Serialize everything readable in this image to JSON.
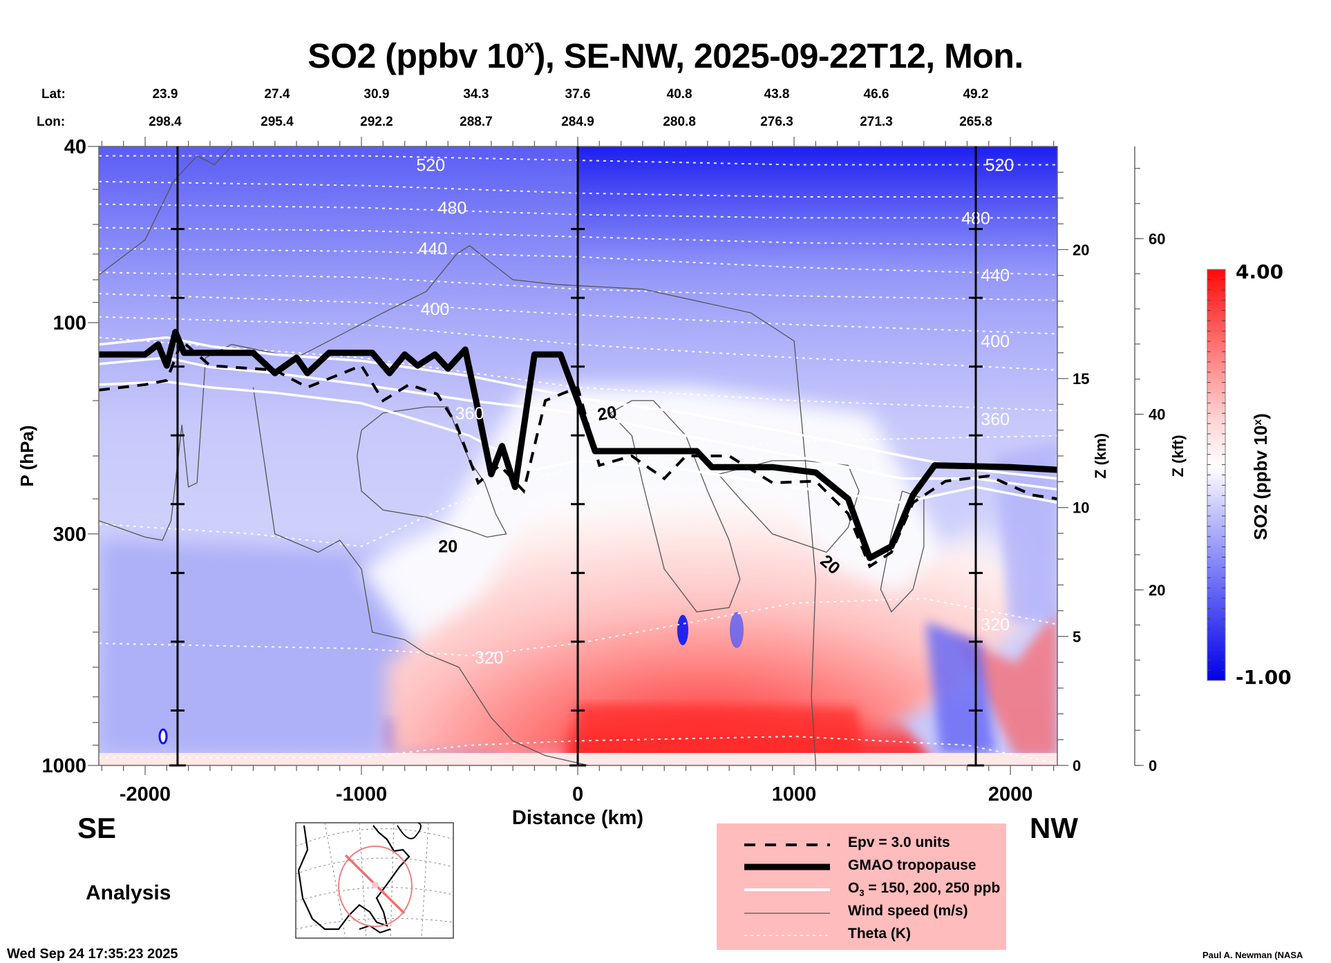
{
  "title": {
    "prefix": "SO2 (ppbv 10",
    "sup": "x",
    "suffix": "), SE-NW, 2025-09-22T12, Mon."
  },
  "coords": {
    "lat_label": "Lat:",
    "lon_label": "Lon:",
    "distance_km": [
      -1850,
      -1390,
      -930,
      -470,
      0,
      470,
      920,
      1380,
      1840
    ],
    "lat": [
      "23.9",
      "27.4",
      "30.9",
      "34.3",
      "37.6",
      "40.8",
      "43.8",
      "46.6",
      "49.2"
    ],
    "lon": [
      "298.4",
      "295.4",
      "292.2",
      "288.7",
      "284.9",
      "280.8",
      "276.3",
      "271.3",
      "265.8"
    ]
  },
  "direction": {
    "left": "SE",
    "right": "NW"
  },
  "mode_label": "Analysis",
  "timestamp": "Wed Sep 24 17:35:23 2025",
  "credit": "Paul A. Newman (NASA",
  "legend": {
    "items": [
      {
        "style": "dashed",
        "label": "Epv = 3.0 units"
      },
      {
        "style": "thick",
        "label": "GMAO tropopause"
      },
      {
        "style": "white",
        "label_prefix": "O",
        "label_sub": "3",
        "label_suffix": " = 150, 200, 250 ppb"
      },
      {
        "style": "thin",
        "label": "Wind speed (m/s)"
      },
      {
        "style": "dotted",
        "label": "Theta (K)"
      }
    ]
  },
  "chart_data": {
    "type": "heatmap",
    "title": "SO2 (ppbv 10^x), SE-NW, 2025-09-22T12, Mon.",
    "xlabel": "Distance (km)",
    "ylabel": "P (hPa)",
    "y2label": "Z (km)",
    "y3label": "Z (kft)",
    "xlim": [
      -2214,
      2217
    ],
    "ylim_hpa": [
      1000,
      40
    ],
    "y_scale": "log",
    "x_ticks": [
      -2000,
      -1000,
      0,
      1000,
      2000
    ],
    "y_ticks_hpa": [
      40,
      100,
      300,
      1000
    ],
    "z_km_ticks": [
      0,
      5,
      10,
      15,
      20
    ],
    "z_kft_ticks": [
      0,
      20,
      40,
      60
    ],
    "colorbar": {
      "label_prefix": "SO2 (ppbv 10",
      "label_sup": "x",
      "label_suffix": ")",
      "min": -1.0,
      "max": 4.0,
      "min_label": "-1.00",
      "max_label": "4.00",
      "low_color": "#0000ee",
      "mid_color": "#ffffff",
      "high_color": "#ff0000"
    },
    "vertical_markers_km": [
      -1850,
      0,
      1840
    ],
    "theta_labels": [
      {
        "value": "520",
        "x": -680,
        "p": 44
      },
      {
        "value": "480",
        "x": -580,
        "p": 55
      },
      {
        "value": "440",
        "x": -670,
        "p": 68
      },
      {
        "value": "400",
        "x": -660,
        "p": 93
      },
      {
        "value": "360",
        "x": -500,
        "p": 160
      },
      {
        "value": "320",
        "x": -410,
        "p": 570
      },
      {
        "value": "520",
        "x": 1950,
        "p": 44
      },
      {
        "value": "480",
        "x": 1840,
        "p": 58
      },
      {
        "value": "440",
        "x": 1930,
        "p": 78
      },
      {
        "value": "400",
        "x": 1930,
        "p": 110
      },
      {
        "value": "360",
        "x": 1930,
        "p": 165
      },
      {
        "value": "320",
        "x": 1930,
        "p": 480
      }
    ],
    "theta_lines_hpa": [
      [
        [
          -2214,
          42
        ],
        [
          -1000,
          42
        ],
        [
          0,
          43
        ],
        [
          1000,
          44
        ],
        [
          2217,
          44
        ]
      ],
      [
        [
          -2214,
          48
        ],
        [
          -1000,
          49
        ],
        [
          0,
          51
        ],
        [
          1000,
          52
        ],
        [
          2217,
          52
        ]
      ],
      [
        [
          -2214,
          54
        ],
        [
          -1000,
          55
        ],
        [
          0,
          57
        ],
        [
          1000,
          58
        ],
        [
          2217,
          58
        ]
      ],
      [
        [
          -2214,
          61
        ],
        [
          -1000,
          62
        ],
        [
          0,
          64
        ],
        [
          1000,
          66
        ],
        [
          2217,
          67
        ]
      ],
      [
        [
          -2214,
          68
        ],
        [
          -1000,
          69
        ],
        [
          0,
          71
        ],
        [
          1000,
          75
        ],
        [
          2217,
          78
        ]
      ],
      [
        [
          -2214,
          77
        ],
        [
          -1000,
          79
        ],
        [
          0,
          84
        ],
        [
          1000,
          87
        ],
        [
          2217,
          89
        ]
      ],
      [
        [
          -2214,
          86
        ],
        [
          -1000,
          90
        ],
        [
          0,
          96
        ],
        [
          1000,
          101
        ],
        [
          2217,
          106
        ]
      ],
      [
        [
          -2214,
          97
        ],
        [
          -1000,
          101
        ],
        [
          0,
          112
        ],
        [
          1000,
          120
        ],
        [
          2217,
          128
        ]
      ],
      [
        [
          -2214,
          108
        ],
        [
          -1000,
          120
        ],
        [
          0,
          140
        ],
        [
          1000,
          150
        ],
        [
          2217,
          158
        ]
      ],
      [
        [
          -2214,
          285
        ],
        [
          -1500,
          300
        ],
        [
          -1000,
          320
        ],
        [
          -600,
          260
        ],
        [
          0,
          210
        ],
        [
          1000,
          185
        ],
        [
          2217,
          180
        ]
      ],
      [
        [
          -2214,
          530
        ],
        [
          -1000,
          545
        ],
        [
          -500,
          565
        ],
        [
          0,
          530
        ],
        [
          1000,
          430
        ],
        [
          1600,
          420
        ],
        [
          2217,
          480
        ]
      ],
      [
        [
          -2214,
          960
        ],
        [
          -1000,
          960
        ],
        [
          -500,
          900
        ],
        [
          0,
          880
        ],
        [
          1000,
          860
        ],
        [
          1800,
          900
        ],
        [
          2217,
          990
        ]
      ]
    ],
    "tropopause_hpa": [
      [
        -2214,
        118
      ],
      [
        -2000,
        118
      ],
      [
        -1940,
        112
      ],
      [
        -1900,
        125
      ],
      [
        -1860,
        105
      ],
      [
        -1820,
        117
      ],
      [
        -1500,
        117
      ],
      [
        -1400,
        130
      ],
      [
        -1300,
        120
      ],
      [
        -1250,
        130
      ],
      [
        -1150,
        117
      ],
      [
        -950,
        117
      ],
      [
        -870,
        130
      ],
      [
        -800,
        118
      ],
      [
        -740,
        125
      ],
      [
        -660,
        118
      ],
      [
        -600,
        127
      ],
      [
        -520,
        115
      ],
      [
        -470,
        150
      ],
      [
        -400,
        220
      ],
      [
        -350,
        190
      ],
      [
        -290,
        235
      ],
      [
        -200,
        118
      ],
      [
        -80,
        118
      ],
      [
        0,
        150
      ],
      [
        80,
        195
      ],
      [
        300,
        195
      ],
      [
        550,
        195
      ],
      [
        620,
        212
      ],
      [
        900,
        212
      ],
      [
        1100,
        218
      ],
      [
        1250,
        250
      ],
      [
        1350,
        340
      ],
      [
        1450,
        320
      ],
      [
        1550,
        245
      ],
      [
        1650,
        210
      ],
      [
        2000,
        212
      ],
      [
        2217,
        215
      ]
    ],
    "epv_hpa": [
      [
        -2214,
        142
      ],
      [
        -2000,
        138
      ],
      [
        -1900,
        135
      ],
      [
        -1830,
        110
      ],
      [
        -1700,
        125
      ],
      [
        -1400,
        128
      ],
      [
        -1250,
        140
      ],
      [
        -1000,
        125
      ],
      [
        -900,
        150
      ],
      [
        -780,
        138
      ],
      [
        -650,
        145
      ],
      [
        -560,
        170
      ],
      [
        -460,
        230
      ],
      [
        -360,
        210
      ],
      [
        -250,
        240
      ],
      [
        -150,
        150
      ],
      [
        0,
        140
      ],
      [
        100,
        210
      ],
      [
        250,
        200
      ],
      [
        400,
        225
      ],
      [
        500,
        200
      ],
      [
        700,
        200
      ],
      [
        900,
        230
      ],
      [
        1100,
        228
      ],
      [
        1250,
        270
      ],
      [
        1350,
        355
      ],
      [
        1450,
        330
      ],
      [
        1550,
        255
      ],
      [
        1700,
        228
      ],
      [
        1900,
        222
      ],
      [
        2100,
        245
      ],
      [
        2217,
        250
      ]
    ],
    "ozone_hpa": [
      [
        [
          -2214,
          112
        ],
        [
          -1900,
          108
        ],
        [
          -1700,
          113
        ],
        [
          -1400,
          118
        ],
        [
          -1000,
          122
        ],
        [
          -500,
          132
        ],
        [
          0,
          148
        ],
        [
          500,
          160
        ],
        [
          1000,
          178
        ],
        [
          1500,
          200
        ],
        [
          1840,
          215
        ],
        [
          2217,
          225
        ]
      ],
      [
        [
          -2214,
          124
        ],
        [
          -1900,
          120
        ],
        [
          -1700,
          126
        ],
        [
          -1400,
          130
        ],
        [
          -1000,
          138
        ],
        [
          -500,
          150
        ],
        [
          0,
          160
        ],
        [
          500,
          180
        ],
        [
          1000,
          200
        ],
        [
          1500,
          225
        ],
        [
          1840,
          225
        ],
        [
          2217,
          238
        ]
      ],
      [
        [
          -2214,
          138
        ],
        [
          -1900,
          136
        ],
        [
          -1700,
          140
        ],
        [
          -1400,
          144
        ],
        [
          -1000,
          152
        ],
        [
          -500,
          180
        ],
        [
          -200,
          215
        ],
        [
          0,
          205
        ],
        [
          500,
          215
        ],
        [
          1000,
          235
        ],
        [
          1500,
          255
        ],
        [
          1840,
          235
        ],
        [
          2217,
          255
        ]
      ]
    ],
    "wind_20ms_contours_hpa": [
      [
        [
          -2214,
          78
        ],
        [
          -2000,
          65
        ],
        [
          -1870,
          48
        ],
        [
          -1760,
          42
        ],
        [
          -1680,
          44
        ],
        [
          -1600,
          40
        ]
      ],
      [
        [
          -2214,
          280
        ],
        [
          -2000,
          305
        ],
        [
          -1920,
          310
        ],
        [
          -1880,
          280
        ],
        [
          -1860,
          230
        ],
        [
          -1830,
          170
        ],
        [
          -1800,
          235
        ],
        [
          -1760,
          230
        ],
        [
          -1720,
          120
        ],
        [
          -1600,
          112
        ],
        [
          -1300,
          120
        ],
        [
          -900,
          95
        ],
        [
          -700,
          85
        ],
        [
          -560,
          70
        ],
        [
          -500,
          67
        ],
        [
          -420,
          72
        ],
        [
          -300,
          80
        ],
        [
          -100,
          82
        ],
        [
          300,
          84
        ],
        [
          800,
          95
        ],
        [
          1000,
          110
        ],
        [
          1050,
          200
        ],
        [
          1100,
          380
        ],
        [
          1080,
          700
        ],
        [
          1100,
          1000
        ]
      ],
      [
        [
          -1500,
          140
        ],
        [
          -1400,
          300
        ],
        [
          -1200,
          330
        ],
        [
          -1100,
          310
        ],
        [
          -1000,
          360
        ],
        [
          -950,
          500
        ],
        [
          -800,
          520
        ],
        [
          -700,
          560
        ],
        [
          -550,
          600
        ],
        [
          -400,
          780
        ],
        [
          -300,
          880
        ],
        [
          -150,
          950
        ],
        [
          50,
          1000
        ]
      ],
      [
        [
          -1000,
          175
        ],
        [
          -900,
          160
        ],
        [
          -700,
          155
        ],
        [
          -600,
          155
        ],
        [
          -550,
          180
        ],
        [
          -500,
          205
        ],
        [
          -430,
          230
        ],
        [
          -380,
          270
        ],
        [
          -330,
          300
        ],
        [
          -420,
          305
        ],
        [
          -500,
          295
        ],
        [
          -600,
          285
        ],
        [
          -700,
          275
        ],
        [
          -800,
          270
        ],
        [
          -900,
          265
        ],
        [
          -1000,
          240
        ],
        [
          -1020,
          200
        ],
        [
          -1000,
          175
        ]
      ],
      [
        [
          150,
          160
        ],
        [
          250,
          180
        ],
        [
          300,
          230
        ],
        [
          400,
          360
        ],
        [
          550,
          450
        ],
        [
          700,
          440
        ],
        [
          750,
          380
        ],
        [
          700,
          310
        ],
        [
          600,
          240
        ],
        [
          500,
          180
        ],
        [
          350,
          150
        ],
        [
          250,
          150
        ],
        [
          150,
          160
        ]
      ],
      [
        [
          650,
          220
        ],
        [
          750,
          250
        ],
        [
          900,
          300
        ],
        [
          1150,
          330
        ],
        [
          1250,
          290
        ],
        [
          1300,
          240
        ],
        [
          1250,
          210
        ],
        [
          1050,
          205
        ],
        [
          900,
          205
        ],
        [
          650,
          220
        ]
      ],
      [
        [
          1500,
          240
        ],
        [
          1450,
          300
        ],
        [
          1400,
          400
        ],
        [
          1450,
          450
        ],
        [
          1550,
          400
        ],
        [
          1600,
          320
        ],
        [
          1600,
          250
        ],
        [
          1500,
          240
        ]
      ]
    ],
    "so2_field_description": "Negative (blue, ~-0.5 to -1) values dominate stratosphere above ~100-200 hPa, deepest blue near 40 hPa on NW side; positive (red, up to ~4) plume in lower troposphere from ~-700 to 1600 km below ~400 hPa, strongest near surface 0-1000 km; weak blue column near 1700-1840 km below 500 hPa."
  }
}
